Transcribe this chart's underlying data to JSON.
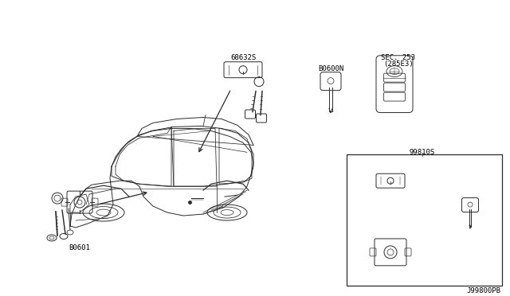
{
  "bg_color": "#ffffff",
  "labels": {
    "ignition_lock": "68632S",
    "door_lock": "B0601",
    "blank_key": "B0600N",
    "fob_line1": "SEC. 253",
    "fob_line2": "(285E3)",
    "keyset": "99810S",
    "part_number": "J99800PB"
  },
  "car_color": "#2a2a2a",
  "lw": 0.7,
  "fig_width": 6.4,
  "fig_height": 3.72,
  "dpi": 100
}
